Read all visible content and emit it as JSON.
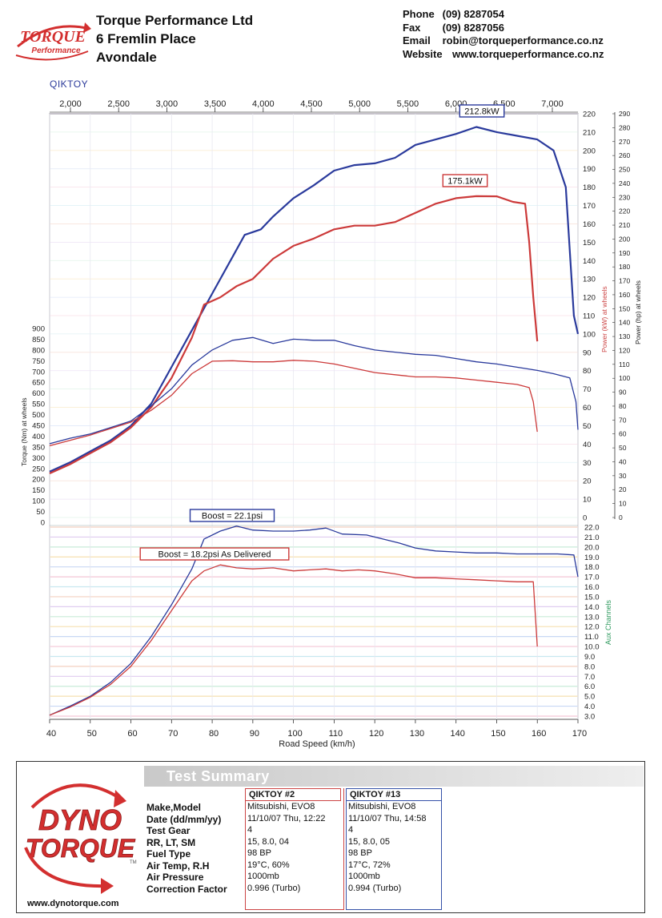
{
  "header": {
    "company_lines": [
      "Torque Performance Ltd",
      "6 Fremlin Place",
      "Avondale"
    ],
    "contact": [
      {
        "k": "Phone",
        "v": "(09) 8287054"
      },
      {
        "k": "Fax",
        "v": "(09) 8287056"
      },
      {
        "k": "Email",
        "v": "robin@torqueperformance.co.nz"
      },
      {
        "k": "Website",
        "v": "www.torqueperformance.co.nz"
      }
    ],
    "logo_text_top": "TORQUE",
    "logo_text_bottom": "Performance",
    "session_name": "QIKTOY"
  },
  "chart_data": {
    "type": "line",
    "x_label": "Road Speed (km/h)",
    "x_range": [
      40,
      170
    ],
    "x_ticks": [
      40,
      50,
      60,
      70,
      80,
      90,
      100,
      110,
      120,
      130,
      140,
      150,
      160,
      170
    ],
    "rpm_ticks": [
      2000,
      2500,
      3000,
      3500,
      4000,
      4500,
      5000,
      5500,
      6000,
      6500,
      7000
    ],
    "rpm_tick_labels": [
      "2,000",
      "2,500",
      "3,000",
      "3,500",
      "4,000",
      "4,500",
      "5,000",
      "5,500",
      "6,000",
      "6,500",
      "7,000"
    ],
    "power_kw_axis": {
      "label": "Power (kW) at wheels",
      "range": [
        0,
        220
      ],
      "ticks": [
        0,
        10,
        20,
        30,
        40,
        50,
        60,
        70,
        80,
        90,
        100,
        110,
        120,
        130,
        140,
        150,
        160,
        170,
        180,
        190,
        200,
        210,
        220
      ]
    },
    "power_hp_axis": {
      "label": "Power (hp) at wheels",
      "range": [
        0,
        290
      ],
      "ticks": [
        0,
        10,
        20,
        30,
        40,
        50,
        60,
        70,
        80,
        90,
        100,
        110,
        120,
        130,
        140,
        150,
        160,
        170,
        180,
        190,
        200,
        210,
        220,
        230,
        240,
        250,
        260,
        270,
        280,
        290
      ]
    },
    "torque_axis": {
      "label": "Torque (Nm) at wheels",
      "range": [
        0,
        900
      ],
      "ticks": [
        0,
        50,
        100,
        150,
        200,
        250,
        300,
        350,
        400,
        450,
        500,
        550,
        600,
        650,
        700,
        750,
        800,
        850,
        900
      ]
    },
    "aux_axis": {
      "label": "Aux Channels",
      "range": [
        3,
        22
      ],
      "ticks": [
        "3.0",
        "4.0",
        "5.0",
        "6.0",
        "7.0",
        "8.0",
        "9.0",
        "10.0",
        "11.0",
        "12.0",
        "13.0",
        "14.0",
        "15.0",
        "16.0",
        "17.0",
        "18.0",
        "19.0",
        "20.0",
        "21.0",
        "22.0"
      ]
    },
    "annotations": {
      "blue_power_peak": "212.8kW",
      "red_power_peak": "175.1kW",
      "blue_boost_peak": "Boost = 22.1psi",
      "red_boost_peak": "Boost = 18.2psi As Delivered"
    },
    "series": [
      {
        "name": "QIKTOY #13 Power",
        "color": "#2a3a9c",
        "axis": "power_kw",
        "points": [
          [
            40,
            25
          ],
          [
            45,
            30
          ],
          [
            50,
            36
          ],
          [
            55,
            42
          ],
          [
            60,
            50
          ],
          [
            65,
            62
          ],
          [
            70,
            82
          ],
          [
            75,
            102
          ],
          [
            80,
            122
          ],
          [
            85,
            142
          ],
          [
            88,
            154
          ],
          [
            92,
            157
          ],
          [
            95,
            164
          ],
          [
            100,
            174
          ],
          [
            105,
            181
          ],
          [
            110,
            189
          ],
          [
            115,
            192
          ],
          [
            120,
            193
          ],
          [
            125,
            196
          ],
          [
            130,
            203
          ],
          [
            135,
            206
          ],
          [
            140,
            209
          ],
          [
            145,
            212.8
          ],
          [
            150,
            210
          ],
          [
            155,
            208
          ],
          [
            160,
            206
          ],
          [
            164,
            200
          ],
          [
            167,
            180
          ],
          [
            169,
            110
          ],
          [
            170,
            100
          ]
        ]
      },
      {
        "name": "QIKTOY #2 Power",
        "color": "#cc3a3a",
        "axis": "power_kw",
        "points": [
          [
            40,
            24
          ],
          [
            45,
            29
          ],
          [
            50,
            35
          ],
          [
            55,
            41
          ],
          [
            60,
            49
          ],
          [
            65,
            60
          ],
          [
            70,
            76
          ],
          [
            75,
            98
          ],
          [
            78,
            116
          ],
          [
            82,
            120
          ],
          [
            86,
            126
          ],
          [
            90,
            130
          ],
          [
            95,
            141
          ],
          [
            100,
            148
          ],
          [
            105,
            152
          ],
          [
            110,
            157
          ],
          [
            115,
            159
          ],
          [
            120,
            159
          ],
          [
            125,
            161
          ],
          [
            130,
            166
          ],
          [
            135,
            171
          ],
          [
            140,
            174
          ],
          [
            145,
            175.1
          ],
          [
            150,
            175
          ],
          [
            154,
            172
          ],
          [
            157,
            171
          ],
          [
            158,
            150
          ],
          [
            159,
            120
          ],
          [
            160,
            96
          ]
        ]
      },
      {
        "name": "QIKTOY #13 Torque",
        "color": "#2a3a9c",
        "axis": "torque",
        "points": [
          [
            40,
            365
          ],
          [
            45,
            390
          ],
          [
            50,
            410
          ],
          [
            55,
            440
          ],
          [
            60,
            470
          ],
          [
            65,
            540
          ],
          [
            70,
            620
          ],
          [
            75,
            730
          ],
          [
            80,
            800
          ],
          [
            85,
            845
          ],
          [
            90,
            858
          ],
          [
            95,
            830
          ],
          [
            100,
            850
          ],
          [
            105,
            845
          ],
          [
            110,
            845
          ],
          [
            115,
            820
          ],
          [
            120,
            800
          ],
          [
            125,
            790
          ],
          [
            130,
            780
          ],
          [
            135,
            775
          ],
          [
            140,
            760
          ],
          [
            145,
            745
          ],
          [
            150,
            735
          ],
          [
            155,
            720
          ],
          [
            160,
            705
          ],
          [
            164,
            690
          ],
          [
            168,
            670
          ],
          [
            169.5,
            560
          ],
          [
            170,
            430
          ]
        ]
      },
      {
        "name": "QIKTOY #2 Torque",
        "color": "#cc3a3a",
        "axis": "torque",
        "points": [
          [
            40,
            355
          ],
          [
            45,
            380
          ],
          [
            50,
            405
          ],
          [
            55,
            435
          ],
          [
            60,
            465
          ],
          [
            65,
            520
          ],
          [
            70,
            590
          ],
          [
            75,
            690
          ],
          [
            80,
            748
          ],
          [
            85,
            750
          ],
          [
            90,
            745
          ],
          [
            95,
            745
          ],
          [
            100,
            752
          ],
          [
            105,
            748
          ],
          [
            110,
            735
          ],
          [
            115,
            715
          ],
          [
            120,
            695
          ],
          [
            125,
            685
          ],
          [
            130,
            675
          ],
          [
            135,
            675
          ],
          [
            140,
            670
          ],
          [
            145,
            660
          ],
          [
            150,
            650
          ],
          [
            155,
            640
          ],
          [
            158,
            625
          ],
          [
            159,
            560
          ],
          [
            160,
            420
          ]
        ]
      },
      {
        "name": "QIKTOY #13 Boost",
        "color": "#2a3a9c",
        "axis": "aux",
        "points": [
          [
            40,
            3.1
          ],
          [
            45,
            4.0
          ],
          [
            50,
            5.0
          ],
          [
            55,
            6.4
          ],
          [
            60,
            8.3
          ],
          [
            65,
            11.0
          ],
          [
            70,
            14.2
          ],
          [
            75,
            17.8
          ],
          [
            78,
            20.8
          ],
          [
            82,
            21.6
          ],
          [
            86,
            22.1
          ],
          [
            90,
            21.7
          ],
          [
            95,
            21.6
          ],
          [
            100,
            21.6
          ],
          [
            104,
            21.7
          ],
          [
            108,
            21.9
          ],
          [
            112,
            21.3
          ],
          [
            118,
            21.2
          ],
          [
            122,
            20.8
          ],
          [
            126,
            20.4
          ],
          [
            130,
            19.9
          ],
          [
            135,
            19.6
          ],
          [
            140,
            19.5
          ],
          [
            145,
            19.4
          ],
          [
            150,
            19.4
          ],
          [
            155,
            19.3
          ],
          [
            160,
            19.3
          ],
          [
            165,
            19.3
          ],
          [
            169,
            19.2
          ],
          [
            170,
            17.0
          ]
        ]
      },
      {
        "name": "QIKTOY #2 Boost",
        "color": "#cc3a3a",
        "axis": "aux",
        "points": [
          [
            40,
            3.1
          ],
          [
            45,
            3.9
          ],
          [
            50,
            4.9
          ],
          [
            55,
            6.2
          ],
          [
            60,
            8.0
          ],
          [
            65,
            10.6
          ],
          [
            70,
            13.6
          ],
          [
            75,
            16.6
          ],
          [
            78,
            17.6
          ],
          [
            82,
            18.2
          ],
          [
            86,
            17.9
          ],
          [
            90,
            17.8
          ],
          [
            95,
            17.9
          ],
          [
            100,
            17.6
          ],
          [
            104,
            17.7
          ],
          [
            108,
            17.8
          ],
          [
            112,
            17.6
          ],
          [
            116,
            17.7
          ],
          [
            120,
            17.6
          ],
          [
            125,
            17.3
          ],
          [
            130,
            16.9
          ],
          [
            135,
            16.9
          ],
          [
            140,
            16.8
          ],
          [
            145,
            16.7
          ],
          [
            150,
            16.6
          ],
          [
            155,
            16.5
          ],
          [
            159,
            16.5
          ],
          [
            160,
            10.0
          ]
        ]
      }
    ]
  },
  "summary": {
    "title": "Test Summary",
    "labels": [
      "Make,Model",
      "Date (dd/mm/yy)",
      "Test Gear",
      "RR, LT, SM",
      "Fuel Type",
      "Air Temp, R.H",
      "Air Pressure",
      "Correction Factor"
    ],
    "runs": [
      {
        "header": "QIKTOY  #2",
        "color": "#c44",
        "values": [
          "Mitsubishi, EVO8",
          "11/10/07 Thu, 12:22",
          "4",
          "15,    8.0,    04",
          "98 BP",
          "19°C,      60%",
          "1000mb",
          "0.996 (Turbo)"
        ]
      },
      {
        "header": "QIKTOY  #13",
        "color": "#3451a8",
        "values": [
          "Mitsubishi, EVO8",
          "11/10/07 Thu, 14:58",
          "4",
          "15,    8.0,    05",
          "98 BP",
          "17°C,      72%",
          "1000mb",
          "0.994 (Turbo)"
        ]
      }
    ],
    "logo_line1": "DYNO",
    "logo_line2": "TORQUE",
    "logo_tm": "TM",
    "website": "www.dynotorque.com"
  },
  "colors": {
    "blue": "#2a3a9c",
    "red": "#cc3a3a",
    "aux_green": "#2e9a5e"
  }
}
